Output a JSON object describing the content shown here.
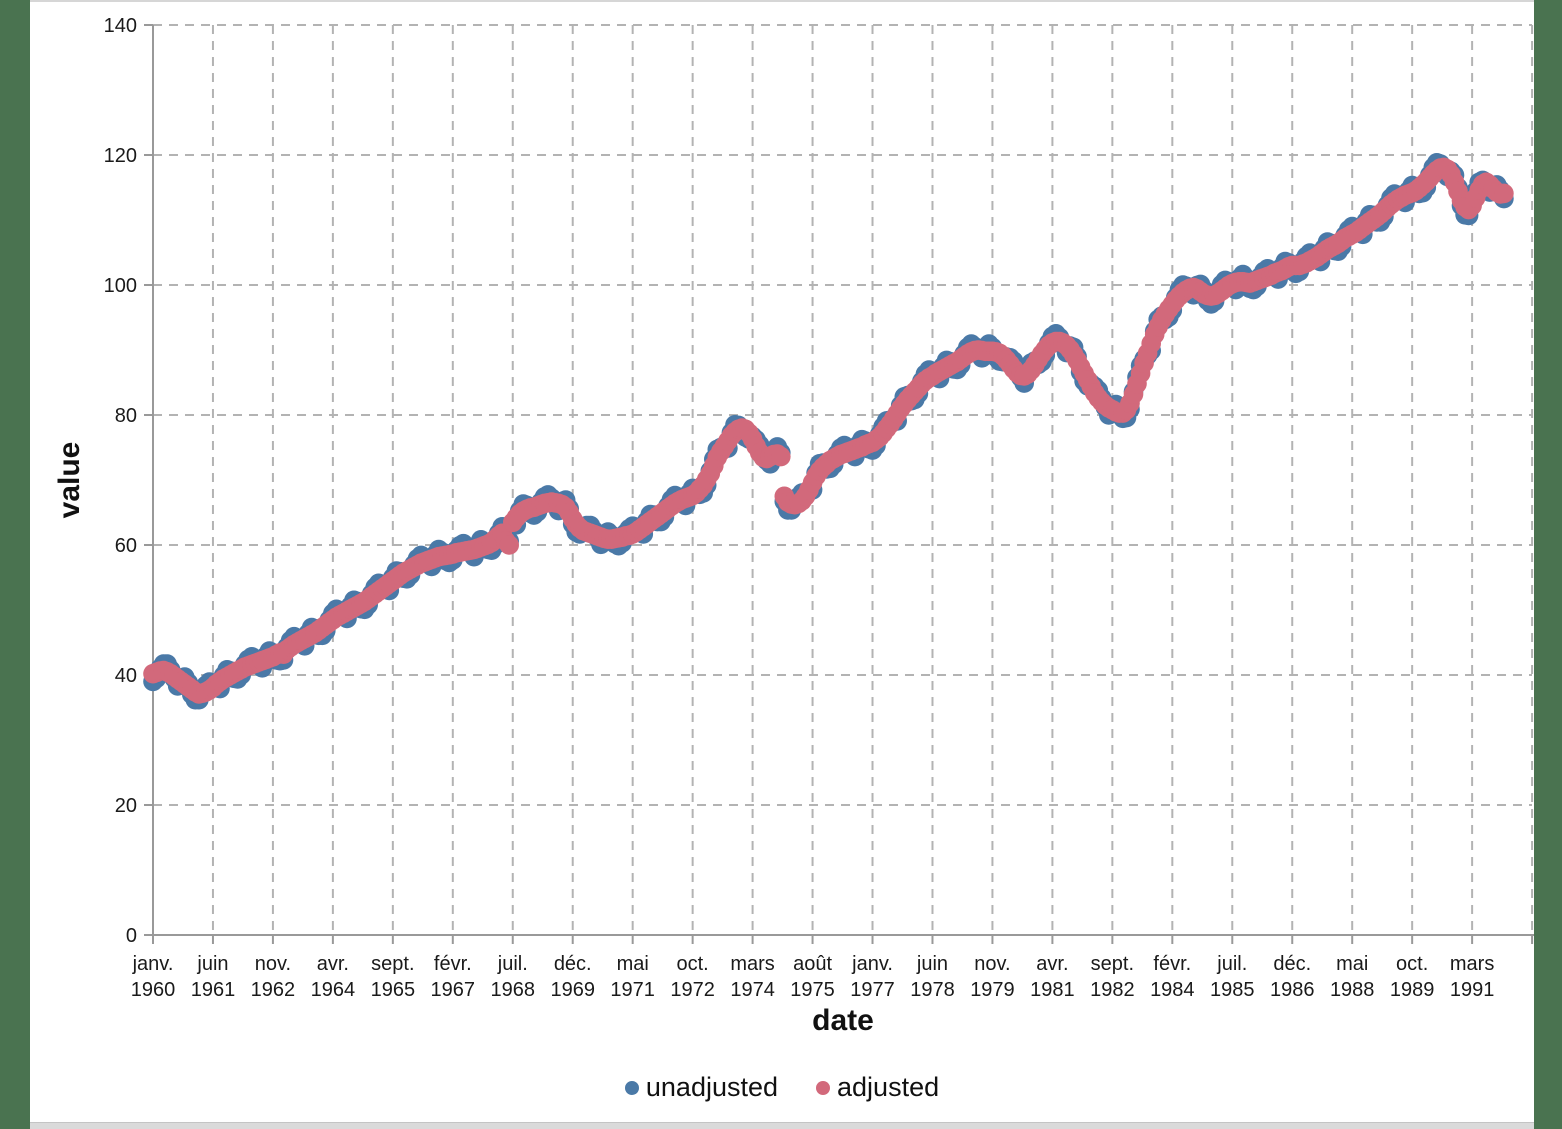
{
  "colors": {
    "page_background": "#4a7350",
    "canvas_background": "#ffffff",
    "grid": "#b3b3b3",
    "axis": "#999999",
    "text": "#1a1a1a"
  },
  "chart_data": {
    "type": "scatter",
    "title": "",
    "xlabel": "date",
    "ylabel": "value",
    "ylim": [
      0,
      140
    ],
    "grid": true,
    "legend_position": "bottom",
    "x_start": "1960-01",
    "x_end": "1991-12",
    "x_tick_interval_months": 17,
    "y_ticks": [
      0,
      20,
      40,
      60,
      80,
      100,
      120,
      140
    ],
    "x_tick_labels": [
      {
        "month": "janv.",
        "year": "1960"
      },
      {
        "month": "juin",
        "year": "1961"
      },
      {
        "month": "nov.",
        "year": "1962"
      },
      {
        "month": "avr.",
        "year": "1964"
      },
      {
        "month": "sept.",
        "year": "1965"
      },
      {
        "month": "févr.",
        "year": "1967"
      },
      {
        "month": "juil.",
        "year": "1968"
      },
      {
        "month": "déc.",
        "year": "1969"
      },
      {
        "month": "mai",
        "year": "1971"
      },
      {
        "month": "oct.",
        "year": "1972"
      },
      {
        "month": "mars",
        "year": "1974"
      },
      {
        "month": "août",
        "year": "1975"
      },
      {
        "month": "janv.",
        "year": "1977"
      },
      {
        "month": "juin",
        "year": "1978"
      },
      {
        "month": "nov.",
        "year": "1979"
      },
      {
        "month": "avr.",
        "year": "1981"
      },
      {
        "month": "sept.",
        "year": "1982"
      },
      {
        "month": "févr.",
        "year": "1984"
      },
      {
        "month": "juil.",
        "year": "1985"
      },
      {
        "month": "déc.",
        "year": "1986"
      },
      {
        "month": "mai",
        "year": "1988"
      },
      {
        "month": "oct.",
        "year": "1989"
      },
      {
        "month": "mars",
        "year": "1991"
      }
    ],
    "series": [
      {
        "name": "unadjusted",
        "color": "#4a79a7",
        "values": [
          39.0,
          39.5,
          41.0,
          41.7,
          41.7,
          40.8,
          39.5,
          38.3,
          39.5,
          39.7,
          38.8,
          37.0,
          36.2,
          36.2,
          37.6,
          38.4,
          38.9,
          38.7,
          38.3,
          37.9,
          39.9,
          40.8,
          40.6,
          39.5,
          39.4,
          40.0,
          41.6,
          42.4,
          42.8,
          42.4,
          41.7,
          41.1,
          42.9,
          43.7,
          43.4,
          42.3,
          42.2,
          42.3,
          44.3,
          45.3,
          45.9,
          45.6,
          45.0,
          44.5,
          46.4,
          47.3,
          47.1,
          46.1,
          46.1,
          46.8,
          48.5,
          49.5,
          50.1,
          49.8,
          49.2,
          48.7,
          50.6,
          51.5,
          51.3,
          50.2,
          50.1,
          50.8,
          52.5,
          53.5,
          54.1,
          53.9,
          53.4,
          53.0,
          55.0,
          56.0,
          55.9,
          54.9,
          54.8,
          55.4,
          57.0,
          57.9,
          58.4,
          58.0,
          57.3,
          56.7,
          58.5,
          59.3,
          58.9,
          57.6,
          57.3,
          57.7,
          59.2,
          59.9,
          60.2,
          59.7,
          58.9,
          58.2,
          60.0,
          60.8,
          60.5,
          59.3,
          59.2,
          60.0,
          61.8,
          62.8,
          61.8,
          60.6,
          63.2,
          63.1,
          65.3,
          66.3,
          66.1,
          64.9,
          64.6,
          65.1,
          66.6,
          67.4,
          67.7,
          67.2,
          66.2,
          65.3,
          66.7,
          66.9,
          65.6,
          63.2,
          62.0,
          61.7,
          62.6,
          63.0,
          63.0,
          62.2,
          61.1,
          60.1,
          61.5,
          62.0,
          61.5,
          60.2,
          59.9,
          60.3,
          61.8,
          62.5,
          62.9,
          62.6,
          62.1,
          61.7,
          63.7,
          64.7,
          64.6,
          63.6,
          63.6,
          64.3,
          66.0,
          67.0,
          67.6,
          67.3,
          66.7,
          66.1,
          67.9,
          68.7,
          68.6,
          67.8,
          68.0,
          69.2,
          71.4,
          73.2,
          74.7,
          75.0,
          74.9,
          74.9,
          77.3,
          78.5,
          78.4,
          77.2,
          76.6,
          76.3,
          76.7,
          76.2,
          75.4,
          74.1,
          73.0,
          72.5,
          74.4,
          75.1,
          74.2,
          66.7,
          65.4,
          65.4,
          66.6,
          67.4,
          68.0,
          68.1,
          68.2,
          68.5,
          71.1,
          72.5,
          72.6,
          71.7,
          71.8,
          72.4,
          74.0,
          74.9,
          75.3,
          74.9,
          74.2,
          73.6,
          75.4,
          76.2,
          76.0,
          74.8,
          74.6,
          75.3,
          77.0,
          78.2,
          79.1,
          79.2,
          79.1,
          79.1,
          81.5,
          82.8,
          83.0,
          82.2,
          82.4,
          83.3,
          85.2,
          86.3,
          86.9,
          86.6,
          86.1,
          85.6,
          87.5,
          88.4,
          88.2,
          87.1,
          87.0,
          87.7,
          89.4,
          90.4,
          90.9,
          90.5,
          89.7,
          88.8,
          90.3,
          90.9,
          90.4,
          88.9,
          88.3,
          88.2,
          88.9,
          88.8,
          88.3,
          87.1,
          85.8,
          84.9,
          86.8,
          88.0,
          88.3,
          87.8,
          88.2,
          89.2,
          91.1,
          92.1,
          92.5,
          91.9,
          90.8,
          89.6,
          90.6,
          90.4,
          89.0,
          86.6,
          85.2,
          84.5,
          84.8,
          84.4,
          83.8,
          82.6,
          81.2,
          80.0,
          81.3,
          81.6,
          80.9,
          79.5,
          79.6,
          80.9,
          83.6,
          85.8,
          87.6,
          88.6,
          89.2,
          89.9,
          92.9,
          94.7,
          95.2,
          94.7,
          95.1,
          96.1,
          98.1,
          99.3,
          100.0,
          99.8,
          99.2,
          98.5,
          99.9,
          100.1,
          99.2,
          97.6,
          97.1,
          97.5,
          99.1,
          100.1,
          100.7,
          100.5,
          99.9,
          99.3,
          101.0,
          101.6,
          101.0,
          99.5,
          99.3,
          99.8,
          101.3,
          102.1,
          102.5,
          102.1,
          101.5,
          100.9,
          102.7,
          103.6,
          103.4,
          102.2,
          101.8,
          102.1,
          103.6,
          104.4,
          104.9,
          104.6,
          104.0,
          103.6,
          105.6,
          106.6,
          106.4,
          105.3,
          105.2,
          105.9,
          107.6,
          108.5,
          109.0,
          108.7,
          108.2,
          107.8,
          109.8,
          110.8,
          110.7,
          109.7,
          109.7,
          110.5,
          112.3,
          113.4,
          114.0,
          113.8,
          113.2,
          112.7,
          114.5,
          115.3,
          115.1,
          114.1,
          114.2,
          115.0,
          116.9,
          118.1,
          118.8,
          118.6,
          117.8,
          116.7,
          117.5,
          116.9,
          115.0,
          112.2,
          110.8,
          110.7,
          112.6,
          114.4,
          115.8,
          116.1,
          115.5,
          114.3,
          115.3,
          115.4,
          114.6,
          113.3
        ]
      },
      {
        "name": "adjusted",
        "color": "#d2697b",
        "values": [
          40.2,
          40.4,
          40.6,
          40.7,
          40.5,
          40.2,
          39.8,
          39.4,
          39.0,
          38.6,
          38.2,
          37.8,
          37.4,
          37.1,
          37.2,
          37.4,
          37.7,
          38.1,
          38.6,
          39.0,
          39.4,
          39.7,
          40.0,
          40.3,
          40.6,
          40.9,
          41.2,
          41.4,
          41.6,
          41.8,
          42.0,
          42.2,
          42.4,
          42.6,
          42.8,
          43.1,
          43.4,
          43.2,
          43.9,
          44.3,
          44.7,
          45.0,
          45.3,
          45.6,
          45.9,
          46.2,
          46.5,
          46.9,
          47.3,
          47.7,
          48.1,
          48.5,
          48.9,
          49.2,
          49.5,
          49.8,
          50.1,
          50.4,
          50.7,
          51.0,
          51.3,
          51.7,
          52.1,
          52.5,
          52.9,
          53.3,
          53.7,
          54.1,
          54.5,
          54.9,
          55.3,
          55.7,
          56.0,
          56.3,
          56.6,
          56.9,
          57.2,
          57.4,
          57.6,
          57.8,
          58.0,
          58.2,
          58.3,
          58.4,
          58.5,
          58.6,
          58.8,
          58.9,
          59.0,
          59.1,
          59.2,
          59.3,
          59.5,
          59.7,
          59.9,
          60.1,
          60.4,
          60.9,
          61.4,
          61.8,
          60.6,
          60.0,
          63.5,
          64.2,
          64.8,
          65.2,
          65.5,
          65.7,
          65.8,
          66.0,
          66.2,
          66.4,
          66.5,
          66.6,
          66.5,
          66.4,
          66.2,
          65.8,
          65.0,
          64.0,
          63.2,
          62.6,
          62.2,
          62.0,
          61.8,
          61.6,
          61.4,
          61.2,
          61.0,
          60.9,
          60.9,
          61.0,
          61.1,
          61.2,
          61.4,
          61.5,
          61.7,
          62.0,
          62.4,
          62.8,
          63.2,
          63.6,
          64.0,
          64.4,
          64.8,
          65.2,
          65.6,
          66.0,
          66.4,
          66.7,
          67.0,
          67.2,
          67.4,
          67.6,
          68.0,
          68.6,
          69.2,
          70.1,
          71.0,
          72.2,
          73.5,
          74.4,
          75.2,
          76.0,
          76.8,
          77.4,
          77.8,
          78.0,
          77.8,
          77.2,
          76.3,
          75.2,
          74.2,
          73.5,
          73.3,
          73.6,
          73.9,
          74.0,
          73.6,
          67.5,
          66.6,
          66.3,
          66.2,
          66.4,
          66.8,
          67.5,
          68.5,
          69.6,
          70.6,
          71.4,
          72.0,
          72.5,
          73.0,
          73.3,
          73.6,
          73.9,
          74.1,
          74.3,
          74.5,
          74.7,
          74.9,
          75.1,
          75.4,
          75.6,
          75.8,
          76.2,
          76.6,
          77.2,
          77.9,
          78.6,
          79.4,
          80.2,
          81.0,
          81.7,
          82.4,
          83.0,
          83.6,
          84.2,
          84.8,
          85.3,
          85.7,
          86.0,
          86.4,
          86.7,
          87.0,
          87.3,
          87.6,
          87.9,
          88.2,
          88.6,
          89.0,
          89.4,
          89.7,
          89.9,
          90.0,
          89.9,
          89.8,
          89.8,
          89.8,
          89.7,
          89.5,
          89.1,
          88.5,
          87.8,
          87.1,
          86.5,
          86.1,
          86.0,
          86.3,
          86.9,
          87.7,
          88.6,
          89.4,
          90.1,
          90.7,
          91.1,
          91.3,
          91.3,
          91.1,
          90.7,
          90.1,
          89.3,
          88.4,
          87.4,
          86.4,
          85.4,
          84.4,
          83.4,
          82.6,
          82.0,
          81.5,
          81.1,
          80.8,
          80.5,
          80.3,
          80.3,
          80.8,
          81.8,
          83.2,
          84.8,
          86.4,
          88.0,
          89.5,
          91.0,
          92.4,
          93.6,
          94.6,
          95.5,
          96.3,
          97.0,
          97.7,
          98.3,
          98.8,
          99.2,
          99.5,
          99.6,
          99.4,
          99.0,
          98.6,
          98.4,
          98.3,
          98.4,
          98.7,
          99.1,
          99.5,
          99.9,
          100.2,
          100.4,
          100.5,
          100.5,
          100.4,
          100.3,
          100.5,
          100.7,
          100.9,
          101.1,
          101.3,
          101.5,
          101.8,
          102.0,
          102.2,
          102.5,
          102.8,
          103.0,
          103.0,
          103.0,
          103.2,
          103.4,
          103.7,
          104.0,
          104.3,
          104.7,
          105.1,
          105.5,
          105.8,
          106.1,
          106.4,
          106.8,
          107.2,
          107.5,
          107.8,
          108.1,
          108.5,
          108.9,
          109.3,
          109.7,
          110.1,
          110.5,
          110.9,
          111.4,
          111.9,
          112.4,
          112.8,
          113.2,
          113.5,
          113.8,
          114.0,
          114.2,
          114.5,
          114.9,
          115.4,
          115.9,
          116.5,
          117.1,
          117.6,
          118.0,
          118.1,
          117.8,
          117.0,
          115.8,
          114.4,
          113.0,
          112.0,
          111.6,
          112.2,
          113.4,
          114.6,
          115.5,
          115.8,
          115.4,
          114.8,
          114.3,
          114.0,
          114.1
        ]
      }
    ]
  }
}
